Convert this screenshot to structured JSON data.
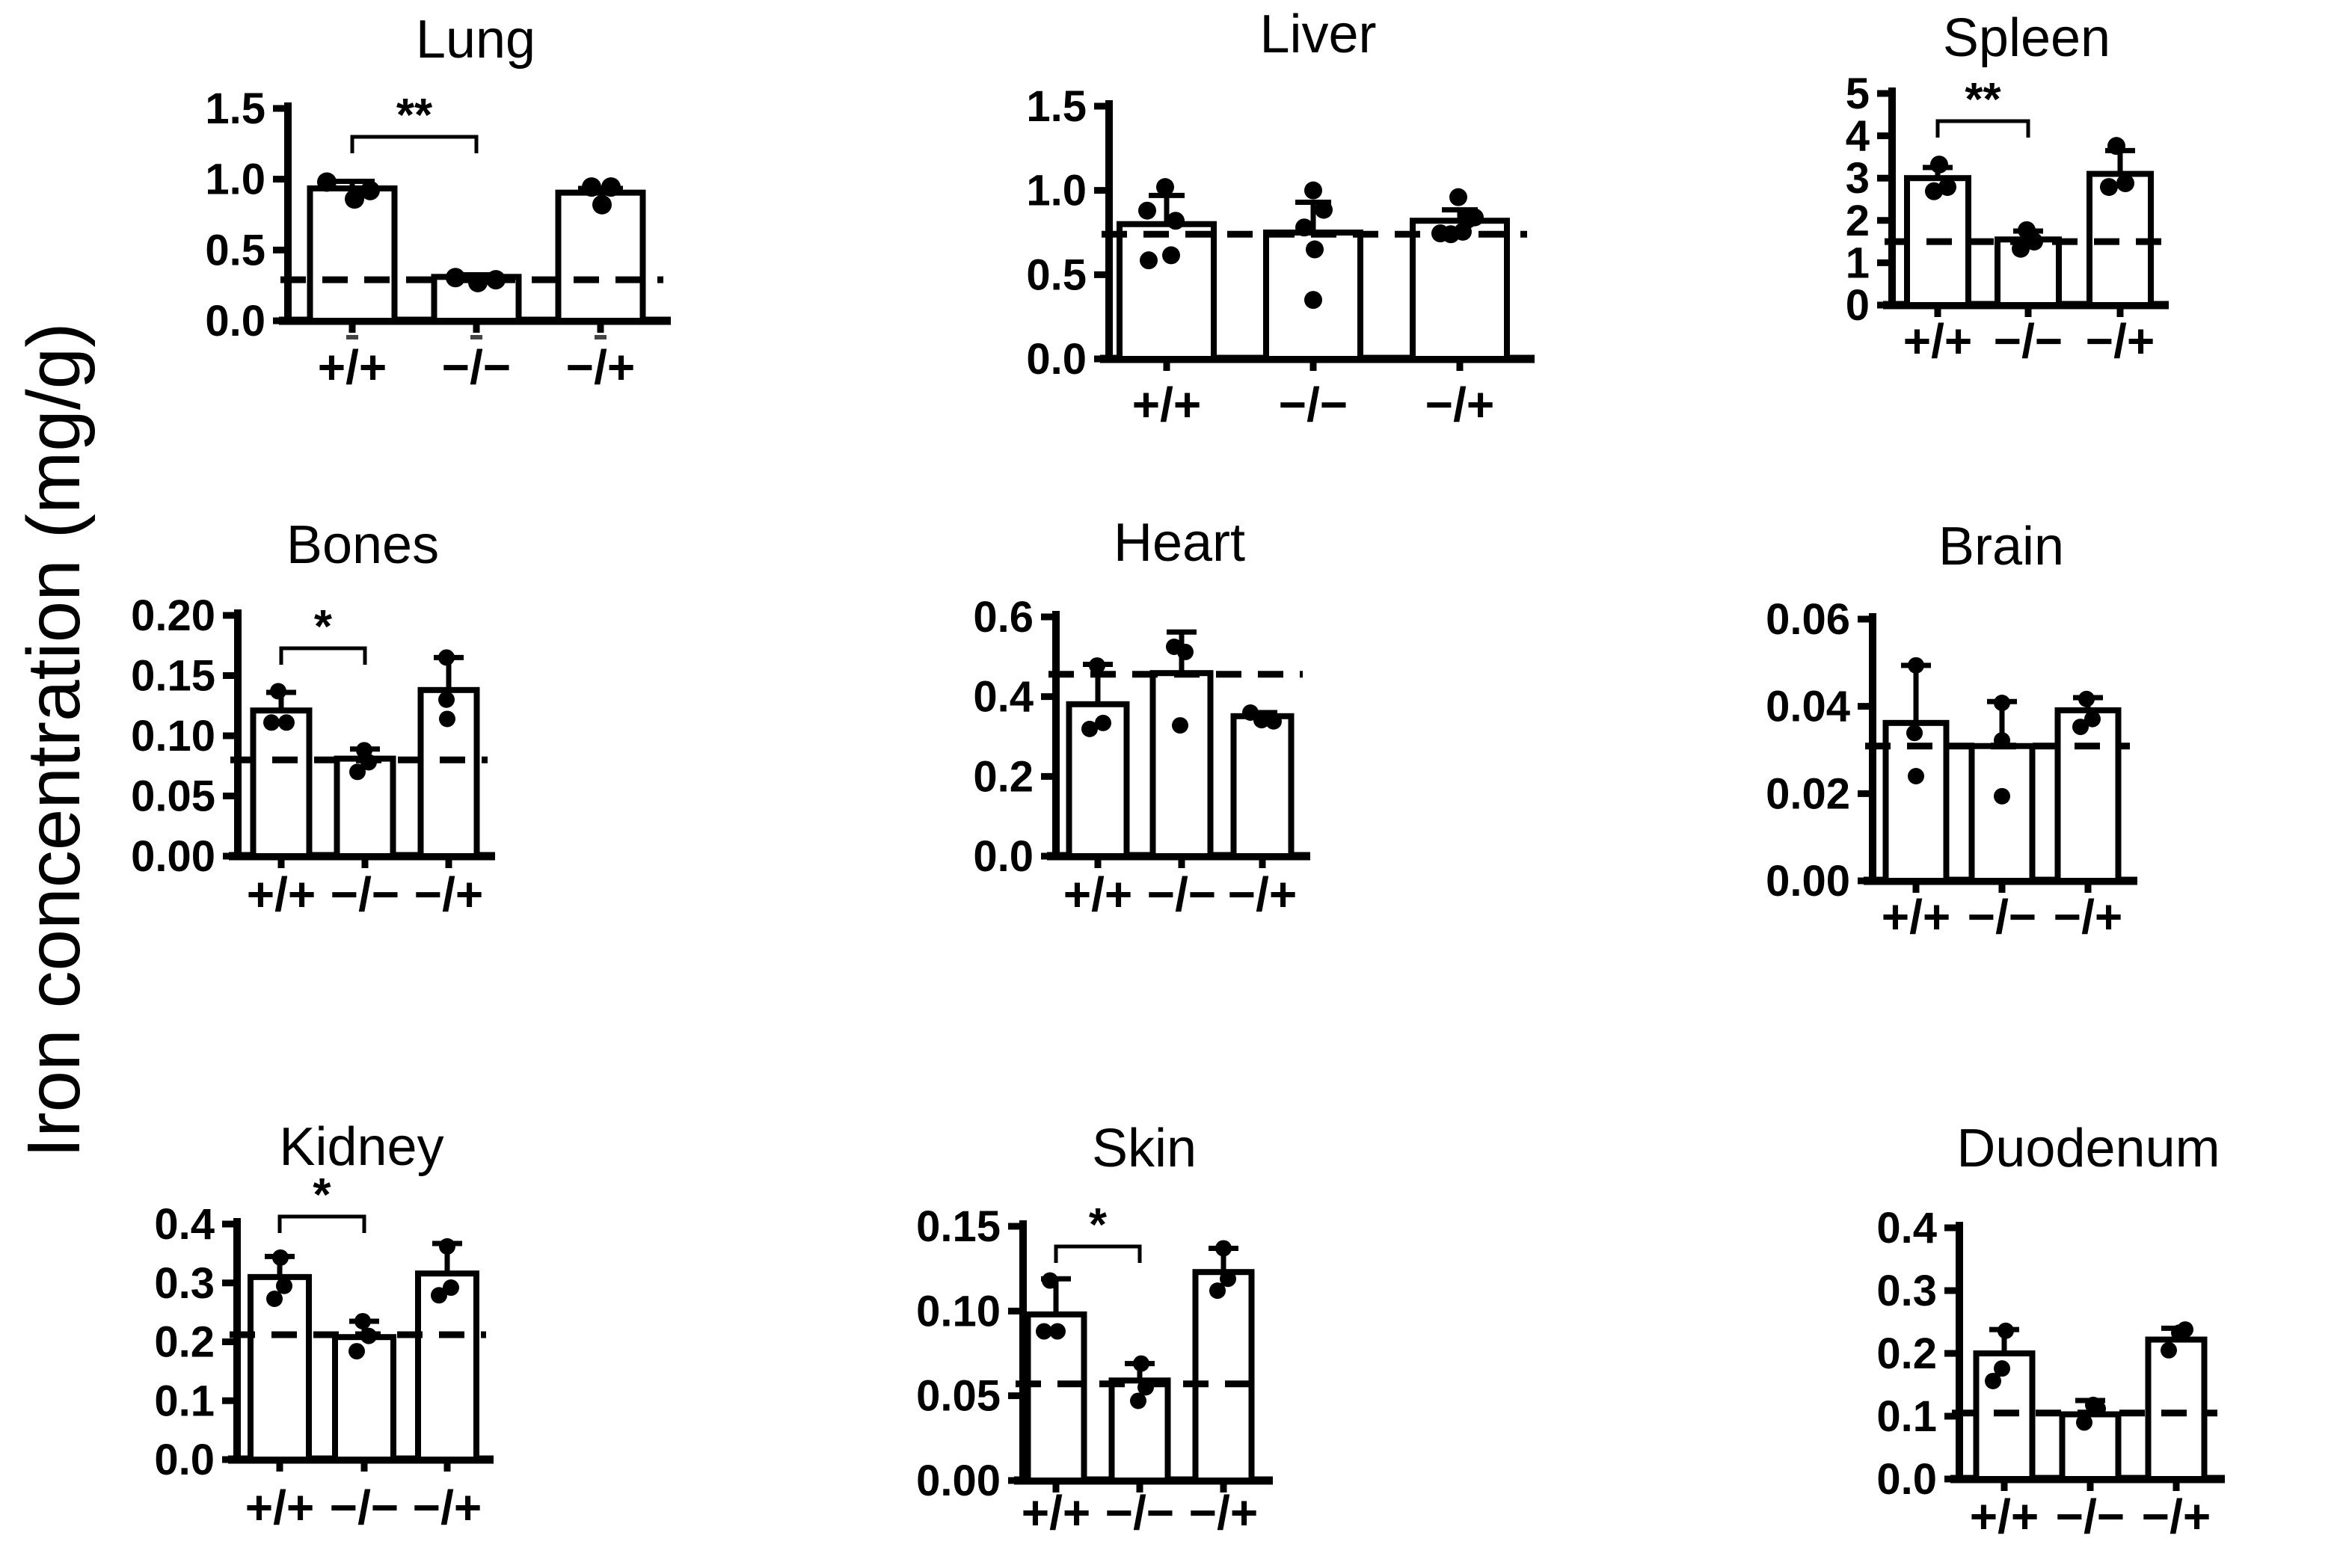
{
  "figure": {
    "ylabel": "Iron concentration (mg/g)",
    "genotypes": [
      "+/+",
      "−/−",
      "−/+"
    ]
  },
  "chart_data": [
    {
      "type": "bar",
      "title": "Lung",
      "categories": [
        "+/+",
        "−/−",
        "−/+"
      ],
      "values": [
        0.935,
        0.31,
        0.905
      ],
      "sd_upper": [
        0.05,
        0.015,
        0.03
      ],
      "points": [
        [
          0.98,
          0.92,
          0.86
        ],
        [
          0.305,
          0.27,
          0.29
        ],
        [
          0.945,
          0.945,
          0.82
        ]
      ],
      "dashed_line_y": 0.29,
      "ylim": [
        0,
        1.5
      ],
      "yticks": [
        "0.0",
        "0.5",
        "1.0",
        "1.5"
      ],
      "significance": {
        "between": [
          "+/+",
          "−/−"
        ],
        "label": "**"
      }
    },
    {
      "type": "bar",
      "title": "Liver",
      "categories": [
        "+/+",
        "−/−",
        "−/+"
      ],
      "values": [
        0.8,
        0.75,
        0.82
      ],
      "sd_upper": [
        0.17,
        0.18,
        0.065
      ],
      "points": [
        [
          1.02,
          0.88,
          0.82,
          0.585,
          0.615
        ],
        [
          1.0,
          0.885,
          0.78,
          0.65,
          0.35
        ],
        [
          0.96,
          0.84,
          0.825,
          0.755,
          0.745,
          0.74
        ]
      ],
      "dashed_line_y": 0.74,
      "ylim": [
        0,
        1.5
      ],
      "yticks": [
        "0.0",
        "0.5",
        "1.0",
        "1.5"
      ],
      "significance": null
    },
    {
      "type": "bar",
      "title": "Spleen",
      "categories": [
        "+/+",
        "−/−",
        "−/+"
      ],
      "values": [
        3.0,
        1.55,
        3.1
      ],
      "sd_upper": [
        0.25,
        0.2,
        0.55
      ],
      "points": [
        [
          2.69,
          2.79,
          3.32
        ],
        [
          1.33,
          1.5,
          1.77
        ],
        [
          2.79,
          2.88,
          3.76
        ]
      ],
      "dashed_line_y": 1.5,
      "ylim": [
        0,
        5
      ],
      "yticks": [
        "0",
        "1",
        "2",
        "3",
        "4",
        "5"
      ],
      "significance": {
        "between": [
          "+/+",
          "−/−"
        ],
        "label": "**"
      }
    },
    {
      "type": "bar",
      "title": "Bones",
      "categories": [
        "+/+",
        "−/−",
        "−/+"
      ],
      "values": [
        0.121,
        0.081,
        0.138
      ],
      "sd_upper": [
        0.015,
        0.008,
        0.027
      ],
      "points": [
        [
          0.111,
          0.111,
          0.137
        ],
        [
          0.088,
          0.078,
          0.07
        ],
        [
          0.13,
          0.114,
          0.165
        ]
      ],
      "dashed_line_y": 0.08,
      "ylim": [
        0,
        0.2
      ],
      "yticks": [
        "0.00",
        "0.05",
        "0.10",
        "0.15",
        "0.20"
      ],
      "significance": {
        "between": [
          "+/+",
          "−/−"
        ],
        "label": "*"
      }
    },
    {
      "type": "bar",
      "title": "Heart",
      "categories": [
        "+/+",
        "−/−",
        "−/+"
      ],
      "values": [
        0.381,
        0.459,
        0.351
      ],
      "sd_upper": [
        0.1,
        0.103,
        0.009
      ],
      "points": [
        [
          0.319,
          0.334,
          0.478
        ],
        [
          0.525,
          0.512,
          0.328
        ],
        [
          0.36,
          0.341,
          0.338
        ]
      ],
      "dashed_line_y": 0.456,
      "ylim": [
        0,
        0.6
      ],
      "yticks": [
        "0.0",
        "0.2",
        "0.4",
        "0.6"
      ],
      "significance": null
    },
    {
      "type": "bar",
      "title": "Brain",
      "categories": [
        "+/+",
        "−/−",
        "−/+"
      ],
      "values": [
        0.0362,
        0.0309,
        0.0391
      ],
      "sd_upper": [
        0.0132,
        0.0102,
        0.0029
      ],
      "points": [
        [
          0.0494,
          0.0339,
          0.024
        ],
        [
          0.0322,
          0.0194,
          0.0408
        ],
        [
          0.0417,
          0.0353,
          0.0371
        ]
      ],
      "dashed_line_y": 0.0309,
      "ylim": [
        0,
        0.06
      ],
      "yticks": [
        "0.00",
        "0.02",
        "0.04",
        "0.06"
      ],
      "significance": null
    },
    {
      "type": "bar",
      "title": "Kidney",
      "categories": [
        "+/+",
        "−/−",
        "−/+"
      ],
      "values": [
        0.31,
        0.208,
        0.316
      ],
      "sd_upper": [
        0.035,
        0.027,
        0.051
      ],
      "points": [
        [
          0.295,
          0.273,
          0.343
        ],
        [
          0.235,
          0.21,
          0.184
        ],
        [
          0.279,
          0.292,
          0.362
        ]
      ],
      "dashed_line_y": 0.212,
      "ylim": [
        0,
        0.4
      ],
      "yticks": [
        "0.0",
        "0.1",
        "0.2",
        "0.3",
        "0.4"
      ],
      "significance": {
        "between": [
          "+/+",
          "−/−"
        ],
        "label": "*"
      }
    },
    {
      "type": "bar",
      "title": "Skin",
      "categories": [
        "+/+",
        "−/−",
        "−/+"
      ],
      "values": [
        0.098,
        0.059,
        0.123
      ],
      "sd_upper": [
        0.021,
        0.01,
        0.014
      ],
      "points": [
        [
          0.088,
          0.088,
          0.118
        ],
        [
          0.069,
          0.055,
          0.047
        ],
        [
          0.112,
          0.119,
          0.137
        ]
      ],
      "dashed_line_y": 0.057,
      "ylim": [
        0,
        0.15
      ],
      "yticks": [
        "0.00",
        "0.05",
        "0.10",
        "0.15"
      ],
      "significance": {
        "between": [
          "+/+",
          "−/−"
        ],
        "label": "*"
      }
    },
    {
      "type": "bar",
      "title": "Duodenum",
      "categories": [
        "+/+",
        "−/−",
        "−/+"
      ],
      "values": [
        0.2,
        0.103,
        0.222
      ],
      "sd_upper": [
        0.038,
        0.022,
        0.018
      ],
      "points": [
        [
          0.176,
          0.156,
          0.236
        ],
        [
          0.09,
          0.118,
          0.112
        ],
        [
          0.205,
          0.233,
          0.238
        ]
      ],
      "dashed_line_y": 0.105,
      "ylim": [
        0,
        0.4
      ],
      "yticks": [
        "0.0",
        "0.1",
        "0.2",
        "0.3",
        "0.4"
      ],
      "significance": null
    }
  ]
}
